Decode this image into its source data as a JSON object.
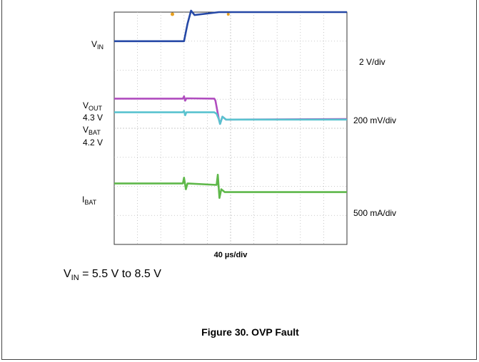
{
  "chart_data": {
    "type": "line",
    "title": "Figure 30. OVP Fault",
    "xlabel": "40 µs/div",
    "x_divisions": 10,
    "y_divisions": 8,
    "grid": true,
    "condition": {
      "symbol": "V",
      "sub": "IN",
      "text": " = 5.5 V to 8.5 V"
    },
    "channels": [
      {
        "name_main": "V",
        "name_sub": "IN",
        "extra": "",
        "scale": "2 V/div",
        "color": "#2548a6",
        "points": [
          [
            0,
            7.0
          ],
          [
            3.0,
            7.0
          ],
          [
            3.15,
            7.6
          ],
          [
            3.3,
            8.05
          ],
          [
            3.45,
            7.9
          ],
          [
            4.0,
            7.95
          ],
          [
            4.5,
            8.0
          ],
          [
            10,
            8.0
          ]
        ]
      },
      {
        "name_main": "V",
        "name_sub": "OUT",
        "extra": "4.3 V",
        "scale": "200 mV/div",
        "color": "#b04cbf",
        "points": [
          [
            0,
            5.02
          ],
          [
            2.95,
            5.02
          ],
          [
            3.0,
            5.1
          ],
          [
            3.05,
            4.95
          ],
          [
            3.1,
            5.03
          ],
          [
            4.3,
            5.02
          ],
          [
            4.35,
            4.95
          ],
          [
            4.5,
            4.3
          ],
          [
            4.55,
            4.15
          ],
          [
            4.65,
            4.4
          ],
          [
            4.8,
            4.3
          ],
          [
            10,
            4.32
          ]
        ]
      },
      {
        "name_main": "V",
        "name_sub": "BAT",
        "extra": "4.2 V",
        "scale": "",
        "color": "#5ac3cf",
        "points": [
          [
            0,
            4.55
          ],
          [
            2.95,
            4.55
          ],
          [
            3.0,
            4.6
          ],
          [
            3.05,
            4.45
          ],
          [
            3.1,
            4.55
          ],
          [
            4.3,
            4.55
          ],
          [
            4.4,
            4.5
          ],
          [
            4.5,
            4.3
          ],
          [
            4.55,
            4.15
          ],
          [
            4.65,
            4.4
          ],
          [
            4.8,
            4.3
          ],
          [
            10,
            4.3
          ]
        ]
      },
      {
        "name_main": "I",
        "name_sub": "BAT",
        "extra": "",
        "scale": "500 mA/div",
        "color": "#5fb84a",
        "points": [
          [
            0,
            2.1
          ],
          [
            2.95,
            2.1
          ],
          [
            3.0,
            2.3
          ],
          [
            3.08,
            1.9
          ],
          [
            3.15,
            2.1
          ],
          [
            4.4,
            2.05
          ],
          [
            4.45,
            2.4
          ],
          [
            4.52,
            1.6
          ],
          [
            4.6,
            1.9
          ],
          [
            4.75,
            1.8
          ],
          [
            10,
            1.8
          ]
        ]
      }
    ]
  }
}
